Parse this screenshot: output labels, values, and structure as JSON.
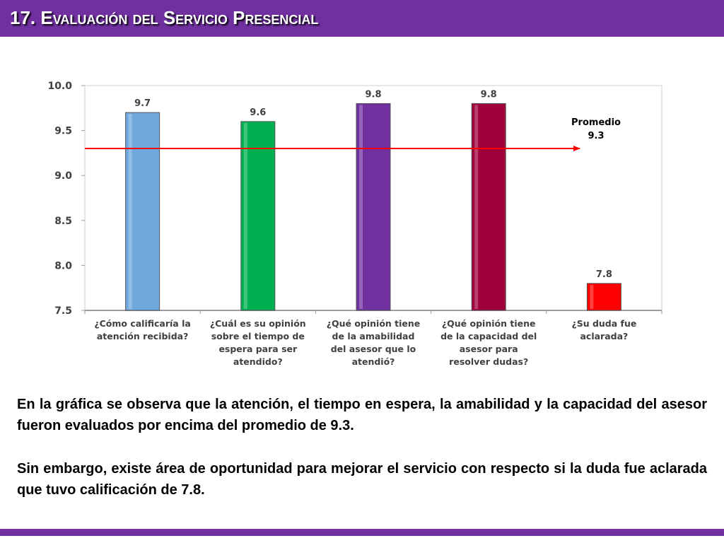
{
  "header": {
    "title": "17. Evaluación del Servicio Presencial"
  },
  "chart_data": {
    "type": "bar",
    "categories": [
      [
        "¿Cómo calificaría la",
        "atención recibida?"
      ],
      [
        "¿Cuál es su opinión",
        "sobre el tiempo de",
        "espera para ser",
        "atendido?"
      ],
      [
        "¿Qué opinión tiene",
        "de la amabilidad",
        "del asesor que lo",
        "atendió?"
      ],
      [
        "¿Qué opinión tiene",
        "de la capacidad del",
        "asesor para",
        "resolver dudas?"
      ],
      [
        "¿Su duda fue",
        "aclarada?"
      ]
    ],
    "values": [
      9.7,
      9.6,
      9.8,
      9.8,
      7.8
    ],
    "value_labels": [
      "9.7",
      "9.6",
      "9.8",
      "9.8",
      "7.8"
    ],
    "colors": [
      "#6fa8dc",
      "#00b050",
      "#7030a0",
      "#a0003c",
      "#ff0000"
    ],
    "ylim": [
      7.5,
      10.0
    ],
    "yticks": [
      7.5,
      8.0,
      8.5,
      9.0,
      9.5,
      10.0
    ],
    "ytick_labels": [
      "7.5",
      "8.0",
      "8.5",
      "9.0",
      "9.5",
      "10.0"
    ],
    "grid": false,
    "average": {
      "value": 9.3,
      "label": [
        "Promedio",
        "9.3"
      ],
      "color": "#ff0000"
    }
  },
  "text": {
    "p1": "En la gráfica se observa que la atención, el tiempo en espera, la amabilidad y la capacidad del asesor  fueron evaluados por encima del promedio de 9.3.",
    "p2": "Sin embargo, existe área de oportunidad para mejorar el servicio con respecto si la duda fue aclarada que tuvo calificación de 7.8."
  }
}
